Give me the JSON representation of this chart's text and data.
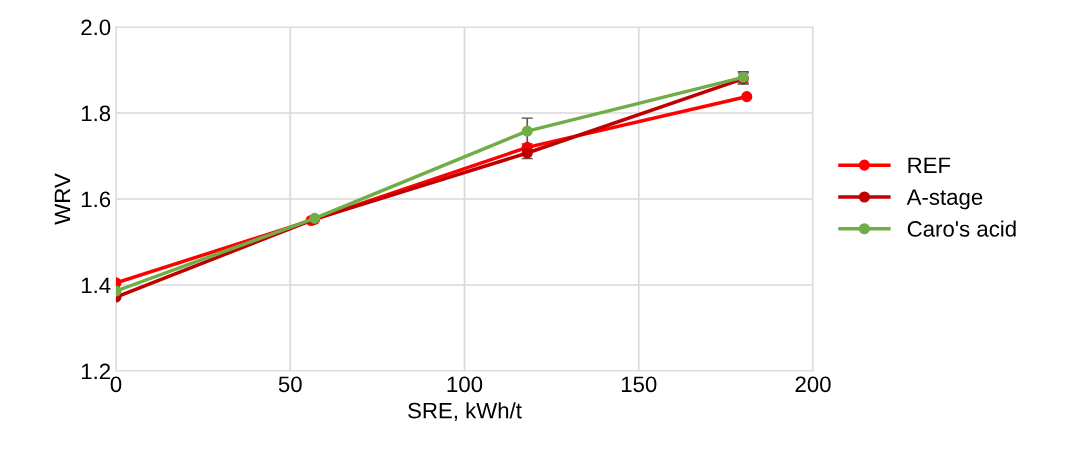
{
  "chart_data": {
    "type": "line",
    "xlabel": "SRE, kWh/t",
    "ylabel": "WRV",
    "xlim": [
      0,
      200
    ],
    "xticks": [
      0,
      50,
      100,
      150,
      200
    ],
    "ylim": [
      1.2,
      2.0
    ],
    "yticks": [
      {
        "value": 1.2,
        "label": "1.2"
      },
      {
        "value": 1.4,
        "label": "1.4"
      },
      {
        "value": 1.6,
        "label": "1.6"
      },
      {
        "value": 1.8,
        "label": "1.8"
      },
      {
        "value": 2.0,
        "label": "2.0"
      }
    ],
    "grid": true,
    "legend": "right",
    "marker": "circle",
    "line_style": "solid",
    "series": [
      {
        "name": "REF",
        "color": "#ff0000",
        "x": [
          0,
          56,
          118,
          181
        ],
        "values": [
          1.405,
          1.55,
          1.72,
          1.838
        ]
      },
      {
        "name": "A-stage",
        "color": "#c00000",
        "x": [
          0,
          57,
          118,
          180
        ],
        "values": [
          1.372,
          1.553,
          1.707,
          1.88
        ],
        "errors": [
          null,
          null,
          0.013,
          0.013
        ]
      },
      {
        "name": "Caro's acid",
        "color": "#70ad47",
        "x": [
          0,
          57,
          118,
          180
        ],
        "values": [
          1.386,
          1.555,
          1.758,
          1.883
        ],
        "errors": [
          null,
          null,
          0.03,
          0.013
        ]
      }
    ]
  }
}
